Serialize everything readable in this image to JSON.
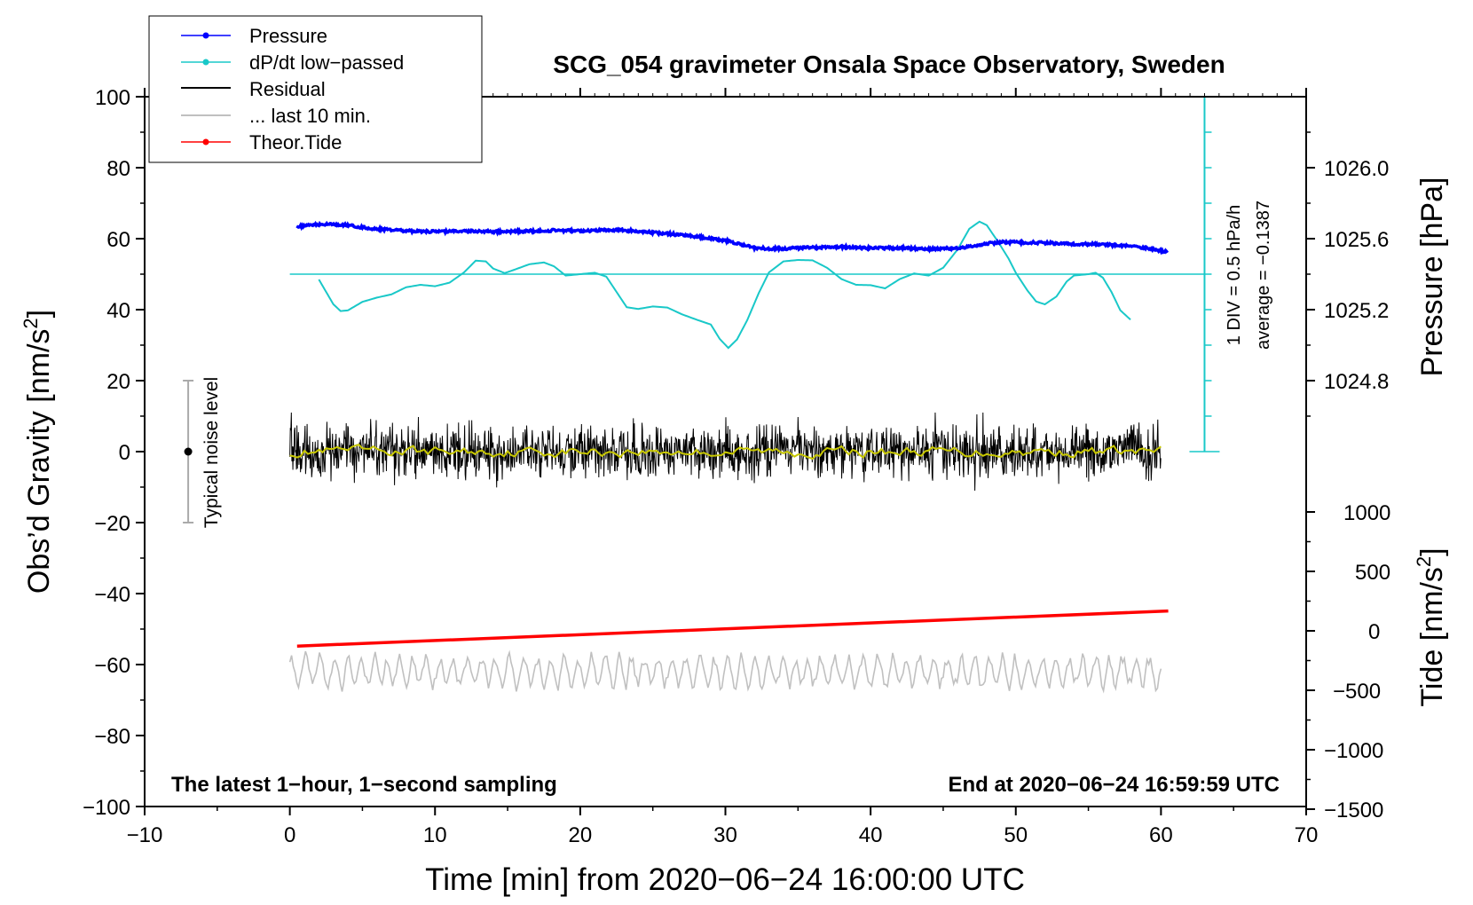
{
  "colors": {
    "pressure": "#0000ff",
    "dpdt": "#19c8c8",
    "residual": "#000000",
    "last10": "#c0c0c0",
    "tide": "#ff0000",
    "smooth": "#c8c800",
    "noise_bar": "#aaaaaa"
  },
  "chart_data": {
    "type": "line",
    "title": "SCG_054 gravimeter Onsala Space Observatory, Sweden",
    "xlabel": "Time [min] from 2020−06−24 16:00:00 UTC",
    "ylabel_left": "Obs’d Gravity [nm/s",
    "ylabel_left_sup": "2",
    "ylabel_left_end": "]",
    "ylabel_pressure": "Pressure [hPa]",
    "ylabel_tide": "Tide [nm/s",
    "ylabel_tide_sup": "2",
    "ylabel_tide_end": "]",
    "xlim": [
      -10,
      70
    ],
    "ylim": [
      -100,
      100
    ],
    "x_ticks": [
      -10,
      0,
      10,
      20,
      30,
      40,
      50,
      60,
      70
    ],
    "x_tick_labels": [
      "−10",
      "0",
      "10",
      "20",
      "30",
      "40",
      "50",
      "60",
      "70"
    ],
    "y_ticks": [
      100,
      80,
      60,
      40,
      20,
      0,
      -20,
      -40,
      -60,
      -80,
      -100
    ],
    "y_tick_labels": [
      "100",
      "80",
      "60",
      "40",
      "20",
      "0",
      "−20",
      "−40",
      "−60",
      "−80",
      "−100"
    ],
    "pressure_axis": {
      "ticks": [
        1026.0,
        1025.6,
        1025.2,
        1024.8
      ],
      "labels": [
        "1026.0",
        "1025.6",
        "1025.2",
        "1024.8"
      ],
      "gravity_at_1026": 80,
      "gravity_per_hPa": 50
    },
    "tide_axis": {
      "ticks": [
        1000,
        500,
        0,
        -500,
        -1000,
        -1500
      ],
      "labels": [
        "1000",
        "500",
        "0",
        "−500",
        "−1000",
        "−1500"
      ],
      "gravity_at_1000": -17,
      "gravity_per_1000": 33.5
    },
    "dpdt_scale": {
      "label_div": "1 DIV = 0.5 hPa/h",
      "label_avg": "average = −0.1387",
      "x": 63,
      "y_min": 0,
      "y_max": 100,
      "divisions": 10,
      "baseline_y": 50,
      "baseline_x": [
        0,
        63
      ]
    },
    "noise_level": {
      "label": "Typical noise level",
      "x": -7,
      "center": 0,
      "low": -20,
      "high": 20
    },
    "annotation_left": "The latest 1−hour, 1−second sampling",
    "annotation_right": "End at 2020−06−24 16:59:59 UTC",
    "legend": [
      "Pressure",
      "dP/dt low−passed",
      "Residual",
      "... last 10 min.",
      "Theor.Tide"
    ],
    "series": [
      {
        "name": "Pressure",
        "points": [
          [
            0.5,
            63.3
          ],
          [
            1,
            63.6
          ],
          [
            2,
            64.0
          ],
          [
            3,
            64.1
          ],
          [
            4,
            63.8
          ],
          [
            5,
            63.2
          ],
          [
            6,
            62.7
          ],
          [
            7,
            62.4
          ],
          [
            8,
            62.2
          ],
          [
            10,
            62.0
          ],
          [
            12,
            62.2
          ],
          [
            14,
            62.0
          ],
          [
            16,
            62.1
          ],
          [
            18,
            62.3
          ],
          [
            20,
            62.2
          ],
          [
            22,
            62.5
          ],
          [
            23,
            62.4
          ],
          [
            24,
            62.0
          ],
          [
            26,
            61.4
          ],
          [
            28,
            60.6
          ],
          [
            30,
            59.5
          ],
          [
            31,
            58.5
          ],
          [
            32,
            57.4
          ],
          [
            33,
            57.2
          ],
          [
            34,
            57.2
          ],
          [
            36,
            57.5
          ],
          [
            38,
            57.7
          ],
          [
            40,
            57.3
          ],
          [
            42,
            57.4
          ],
          [
            44,
            57.1
          ],
          [
            45,
            57.2
          ],
          [
            46,
            57.3
          ],
          [
            47,
            57.9
          ],
          [
            48,
            58.6
          ],
          [
            49,
            59.0
          ],
          [
            50,
            59.0
          ],
          [
            52,
            58.8
          ],
          [
            54,
            58.5
          ],
          [
            56,
            58.4
          ],
          [
            58,
            57.8
          ],
          [
            59,
            57.3
          ],
          [
            60,
            56.6
          ],
          [
            60.5,
            56.3
          ]
        ]
      },
      {
        "name": "dP/dt low−passed",
        "points": [
          [
            2,
            48.5
          ],
          [
            2.5,
            45
          ],
          [
            3,
            41.5
          ],
          [
            3.5,
            39.6
          ],
          [
            4,
            39.8
          ],
          [
            5,
            42.2
          ],
          [
            6,
            43.4
          ],
          [
            7,
            44.3
          ],
          [
            8,
            46.3
          ],
          [
            9,
            47.0
          ],
          [
            10,
            46.6
          ],
          [
            11,
            47.6
          ],
          [
            12,
            50.5
          ],
          [
            12.8,
            53.8
          ],
          [
            13.5,
            53.6
          ],
          [
            14,
            51.6
          ],
          [
            14.8,
            50.3
          ],
          [
            15.5,
            51.3
          ],
          [
            16.5,
            52.8
          ],
          [
            17.5,
            53.3
          ],
          [
            18.2,
            52.2
          ],
          [
            19,
            49.6
          ],
          [
            20,
            50.0
          ],
          [
            21,
            50.4
          ],
          [
            21.8,
            49.3
          ],
          [
            22.5,
            45
          ],
          [
            23.2,
            40.7
          ],
          [
            24,
            40.2
          ],
          [
            25,
            40.9
          ],
          [
            26,
            40.6
          ],
          [
            27,
            38.7
          ],
          [
            28,
            37.2
          ],
          [
            29,
            35.8
          ],
          [
            29.6,
            31.8
          ],
          [
            30.2,
            29.2
          ],
          [
            30.8,
            31.6
          ],
          [
            31.5,
            37.0
          ],
          [
            32.3,
            44.7
          ],
          [
            33,
            50.5
          ],
          [
            34,
            53.6
          ],
          [
            35,
            54.0
          ],
          [
            36,
            53.9
          ],
          [
            37,
            51.8
          ],
          [
            38,
            48.6
          ],
          [
            39,
            47.0
          ],
          [
            40,
            46.9
          ],
          [
            41,
            46.0
          ],
          [
            42,
            48.6
          ],
          [
            43,
            50.2
          ],
          [
            44,
            49.6
          ],
          [
            45,
            51.8
          ],
          [
            46,
            57.0
          ],
          [
            46.8,
            62.8
          ],
          [
            47.5,
            64.8
          ],
          [
            48,
            63.8
          ],
          [
            48.8,
            59.0
          ],
          [
            49.5,
            54.4
          ],
          [
            50,
            50.4
          ],
          [
            50.8,
            45.4
          ],
          [
            51.4,
            42.3
          ],
          [
            52,
            41.5
          ],
          [
            52.8,
            43.7
          ],
          [
            53.5,
            47.9
          ],
          [
            54,
            49.6
          ],
          [
            55,
            50.0
          ],
          [
            55.5,
            50.4
          ],
          [
            56,
            49.0
          ],
          [
            56.6,
            44.9
          ],
          [
            57.2,
            39.8
          ],
          [
            58,
            36.8
          ]
        ]
      },
      {
        "name": "Residual",
        "x_start": 0,
        "x_end": 60,
        "amplitude": 4.5,
        "max_spike": 11,
        "offset": 0
      },
      {
        "name": "... last 10 min.",
        "x_start": 0,
        "x_end": 60,
        "center": -62,
        "amplitude": 4.5
      },
      {
        "name": "Theor.Tide",
        "points": [
          [
            0.5,
            -54.8
          ],
          [
            60.5,
            -44.9
          ]
        ]
      }
    ]
  }
}
